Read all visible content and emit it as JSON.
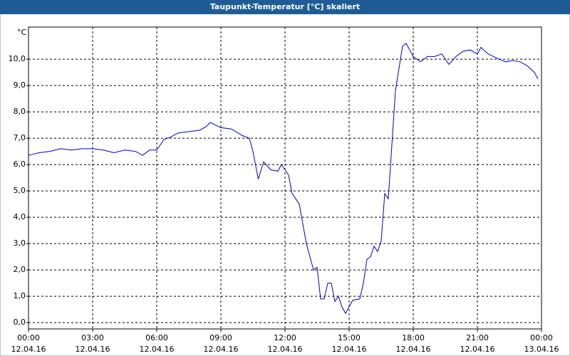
{
  "chart_data": {
    "type": "line",
    "title": "Taupunkt-Temperatur [°C] skaliert",
    "y_label": "°C",
    "xlim": [
      "12.04.16 00:00",
      "13.04.16 00:00"
    ],
    "xticks": [
      {
        "time": "00:00",
        "date": "12.04.16"
      },
      {
        "time": "03:00",
        "date": "12.04.16"
      },
      {
        "time": "06:00",
        "date": "12.04.16"
      },
      {
        "time": "09:00",
        "date": "12.04.16"
      },
      {
        "time": "12:00",
        "date": "12.04.16"
      },
      {
        "time": "15:00",
        "date": "12.04.16"
      },
      {
        "time": "18:00",
        "date": "12.04.16"
      },
      {
        "time": "21:00",
        "date": "12.04.16"
      },
      {
        "time": "00:00",
        "date": "13.04.16"
      }
    ],
    "ylim": [
      -0.24,
      11.22
    ],
    "yticks": [
      {
        "value": 0,
        "label": "0,0"
      },
      {
        "value": 1,
        "label": "1,0"
      },
      {
        "value": 2,
        "label": "2,0"
      },
      {
        "value": 3,
        "label": "3,0"
      },
      {
        "value": 4,
        "label": "4,0"
      },
      {
        "value": 5,
        "label": "5,0"
      },
      {
        "value": 6,
        "label": "6,0"
      },
      {
        "value": 7,
        "label": "7,0"
      },
      {
        "value": 8,
        "label": "8,0"
      },
      {
        "value": 9,
        "label": "9,0"
      },
      {
        "value": 10,
        "label": "10,0"
      }
    ],
    "grid": true,
    "series": [
      {
        "name": "Taupunkt-Temperatur",
        "color": "#0000cc",
        "x": [
          "12.04.16 00:00",
          "12.04.16 00:30",
          "12.04.16 01:00",
          "12.04.16 01:30",
          "12.04.16 02:00",
          "12.04.16 02:30",
          "12.04.16 03:00",
          "12.04.16 03:30",
          "12.04.16 04:00",
          "12.04.16 04:30",
          "12.04.16 05:00",
          "12.04.16 05:20",
          "12.04.16 05:40",
          "12.04.16 06:00",
          "12.04.16 06:20",
          "12.04.16 06:40",
          "12.04.16 07:00",
          "12.04.16 07:30",
          "12.04.16 08:00",
          "12.04.16 08:20",
          "12.04.16 08:30",
          "12.04.16 09:00",
          "12.04.16 09:30",
          "12.04.16 10:00",
          "12.04.16 10:20",
          "12.04.16 10:30",
          "12.04.16 10:45",
          "12.04.16 11:00",
          "12.04.16 11:20",
          "12.04.16 11:40",
          "12.04.16 11:50",
          "12.04.16 12:10",
          "12.04.16 12:20",
          "12.04.16 12:40",
          "12.04.16 13:00",
          "12.04.16 13:20",
          "12.04.16 13:30",
          "12.04.16 13:40",
          "12.04.16 13:50",
          "12.04.16 14:00",
          "12.04.16 14:10",
          "12.04.16 14:20",
          "12.04.16 14:30",
          "12.04.16 14:40",
          "12.04.16 14:50",
          "12.04.16 15:00",
          "12.04.16 15:10",
          "12.04.16 15:30",
          "12.04.16 15:40",
          "12.04.16 15:50",
          "12.04.16 16:00",
          "12.04.16 16:10",
          "12.04.16 16:20",
          "12.04.16 16:30",
          "12.04.16 16:40",
          "12.04.16 16:50",
          "12.04.16 17:10",
          "12.04.16 17:30",
          "12.04.16 17:40",
          "12.04.16 18:00",
          "12.04.16 18:20",
          "12.04.16 18:40",
          "12.04.16 19:00",
          "12.04.16 19:20",
          "12.04.16 19:40",
          "12.04.16 20:00",
          "12.04.16 20:20",
          "12.04.16 20:40",
          "12.04.16 21:00",
          "12.04.16 21:10",
          "12.04.16 21:30",
          "12.04.16 22:00",
          "12.04.16 22:20",
          "12.04.16 22:40",
          "12.04.16 23:00",
          "12.04.16 23:20",
          "12.04.16 23:40",
          "12.04.16 23:50"
        ],
        "values": [
          6.35,
          6.45,
          6.5,
          6.6,
          6.55,
          6.6,
          6.6,
          6.55,
          6.45,
          6.55,
          6.5,
          6.35,
          6.55,
          6.55,
          6.95,
          7.05,
          7.2,
          7.25,
          7.3,
          7.45,
          7.6,
          7.4,
          7.35,
          7.1,
          7.0,
          6.5,
          5.45,
          6.1,
          5.8,
          5.75,
          6.0,
          5.6,
          4.9,
          4.5,
          3.0,
          2.0,
          2.1,
          0.9,
          0.9,
          1.5,
          1.5,
          0.8,
          1.0,
          0.6,
          0.35,
          0.6,
          0.85,
          0.9,
          1.5,
          2.4,
          2.5,
          2.9,
          2.7,
          3.1,
          4.9,
          4.7,
          8.8,
          10.5,
          10.6,
          10.1,
          9.9,
          10.1,
          10.1,
          10.2,
          9.8,
          10.1,
          10.3,
          10.35,
          10.2,
          10.45,
          10.2,
          10.0,
          9.9,
          9.95,
          9.9,
          9.75,
          9.5,
          9.25
        ]
      }
    ]
  }
}
